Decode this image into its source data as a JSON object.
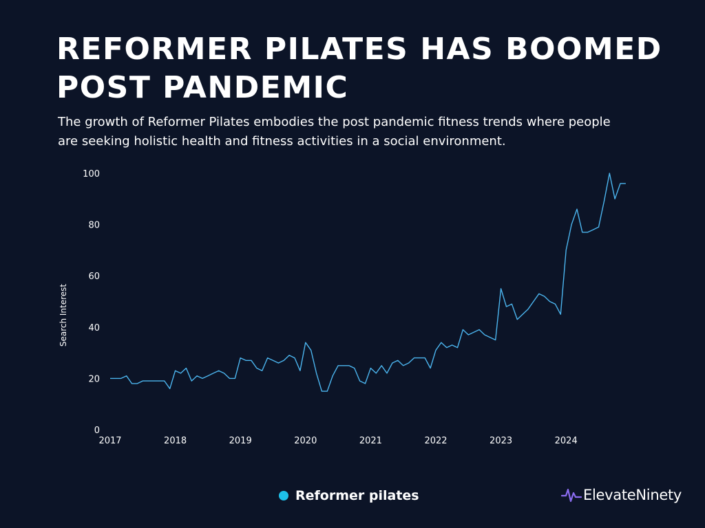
{
  "header": {
    "title": "REFORMER PILATES HAS BOOMED POST PANDEMIC",
    "subtitle": "The growth of Reformer Pilates embodies the post pandemic fitness trends where people are seeking holistic health and fitness activities in a social environment."
  },
  "brand": {
    "name": "ElevateNinety",
    "logo_icon": "pulse-wave-icon",
    "logo_color": "#8b6cf0"
  },
  "colors": {
    "background": "#0c1427",
    "series_line": "#4cb6f0",
    "legend_dot": "#1ec1ea",
    "text": "#ffffff"
  },
  "chart_data": {
    "type": "line",
    "title": "",
    "xlabel": "",
    "ylabel": "Search Interest",
    "ylim": [
      0,
      100
    ],
    "yticks": [
      0,
      20,
      40,
      60,
      80,
      100
    ],
    "x_tick_labels": [
      "2017",
      "2018",
      "2019",
      "2020",
      "2021",
      "2022",
      "2023",
      "2024"
    ],
    "grid": false,
    "legend_position": "bottom-center",
    "series": [
      {
        "name": "Reformer pilates",
        "color": "#4cb6f0",
        "points": [
          [
            "2017-01",
            20
          ],
          [
            "2017-02",
            20
          ],
          [
            "2017-03",
            20
          ],
          [
            "2017-04",
            21
          ],
          [
            "2017-05",
            18
          ],
          [
            "2017-06",
            18
          ],
          [
            "2017-07",
            19
          ],
          [
            "2017-08",
            19
          ],
          [
            "2017-09",
            19
          ],
          [
            "2017-10",
            19
          ],
          [
            "2017-11",
            19
          ],
          [
            "2017-12",
            16
          ],
          [
            "2018-01",
            23
          ],
          [
            "2018-02",
            22
          ],
          [
            "2018-03",
            24
          ],
          [
            "2018-04",
            19
          ],
          [
            "2018-05",
            21
          ],
          [
            "2018-06",
            20
          ],
          [
            "2018-07",
            21
          ],
          [
            "2018-08",
            22
          ],
          [
            "2018-09",
            23
          ],
          [
            "2018-10",
            22
          ],
          [
            "2018-11",
            20
          ],
          [
            "2018-12",
            20
          ],
          [
            "2019-01",
            28
          ],
          [
            "2019-02",
            27
          ],
          [
            "2019-03",
            27
          ],
          [
            "2019-04",
            24
          ],
          [
            "2019-05",
            23
          ],
          [
            "2019-06",
            28
          ],
          [
            "2019-07",
            27
          ],
          [
            "2019-08",
            26
          ],
          [
            "2019-09",
            27
          ],
          [
            "2019-10",
            29
          ],
          [
            "2019-11",
            28
          ],
          [
            "2019-12",
            23
          ],
          [
            "2020-01",
            34
          ],
          [
            "2020-02",
            31
          ],
          [
            "2020-03",
            22
          ],
          [
            "2020-04",
            15
          ],
          [
            "2020-05",
            15
          ],
          [
            "2020-06",
            21
          ],
          [
            "2020-07",
            25
          ],
          [
            "2020-08",
            25
          ],
          [
            "2020-09",
            25
          ],
          [
            "2020-10",
            24
          ],
          [
            "2020-11",
            19
          ],
          [
            "2020-12",
            18
          ],
          [
            "2021-01",
            24
          ],
          [
            "2021-02",
            22
          ],
          [
            "2021-03",
            25
          ],
          [
            "2021-04",
            22
          ],
          [
            "2021-05",
            26
          ],
          [
            "2021-06",
            27
          ],
          [
            "2021-07",
            25
          ],
          [
            "2021-08",
            26
          ],
          [
            "2021-09",
            28
          ],
          [
            "2021-10",
            28
          ],
          [
            "2021-11",
            28
          ],
          [
            "2021-12",
            24
          ],
          [
            "2022-01",
            31
          ],
          [
            "2022-02",
            34
          ],
          [
            "2022-03",
            32
          ],
          [
            "2022-04",
            33
          ],
          [
            "2022-05",
            32
          ],
          [
            "2022-06",
            39
          ],
          [
            "2022-07",
            37
          ],
          [
            "2022-08",
            38
          ],
          [
            "2022-09",
            39
          ],
          [
            "2022-10",
            37
          ],
          [
            "2022-11",
            36
          ],
          [
            "2022-12",
            35
          ],
          [
            "2023-01",
            55
          ],
          [
            "2023-02",
            48
          ],
          [
            "2023-03",
            49
          ],
          [
            "2023-04",
            43
          ],
          [
            "2023-05",
            45
          ],
          [
            "2023-06",
            47
          ],
          [
            "2023-07",
            50
          ],
          [
            "2023-08",
            53
          ],
          [
            "2023-09",
            52
          ],
          [
            "2023-10",
            50
          ],
          [
            "2023-11",
            49
          ],
          [
            "2023-12",
            45
          ],
          [
            "2024-01",
            70
          ],
          [
            "2024-02",
            80
          ],
          [
            "2024-03",
            86
          ],
          [
            "2024-04",
            77
          ],
          [
            "2024-05",
            77
          ],
          [
            "2024-06",
            78
          ],
          [
            "2024-07",
            79
          ],
          [
            "2024-08",
            89
          ],
          [
            "2024-09",
            100
          ],
          [
            "2024-10",
            90
          ],
          [
            "2024-11",
            96
          ],
          [
            "2024-12",
            96
          ]
        ]
      }
    ]
  }
}
